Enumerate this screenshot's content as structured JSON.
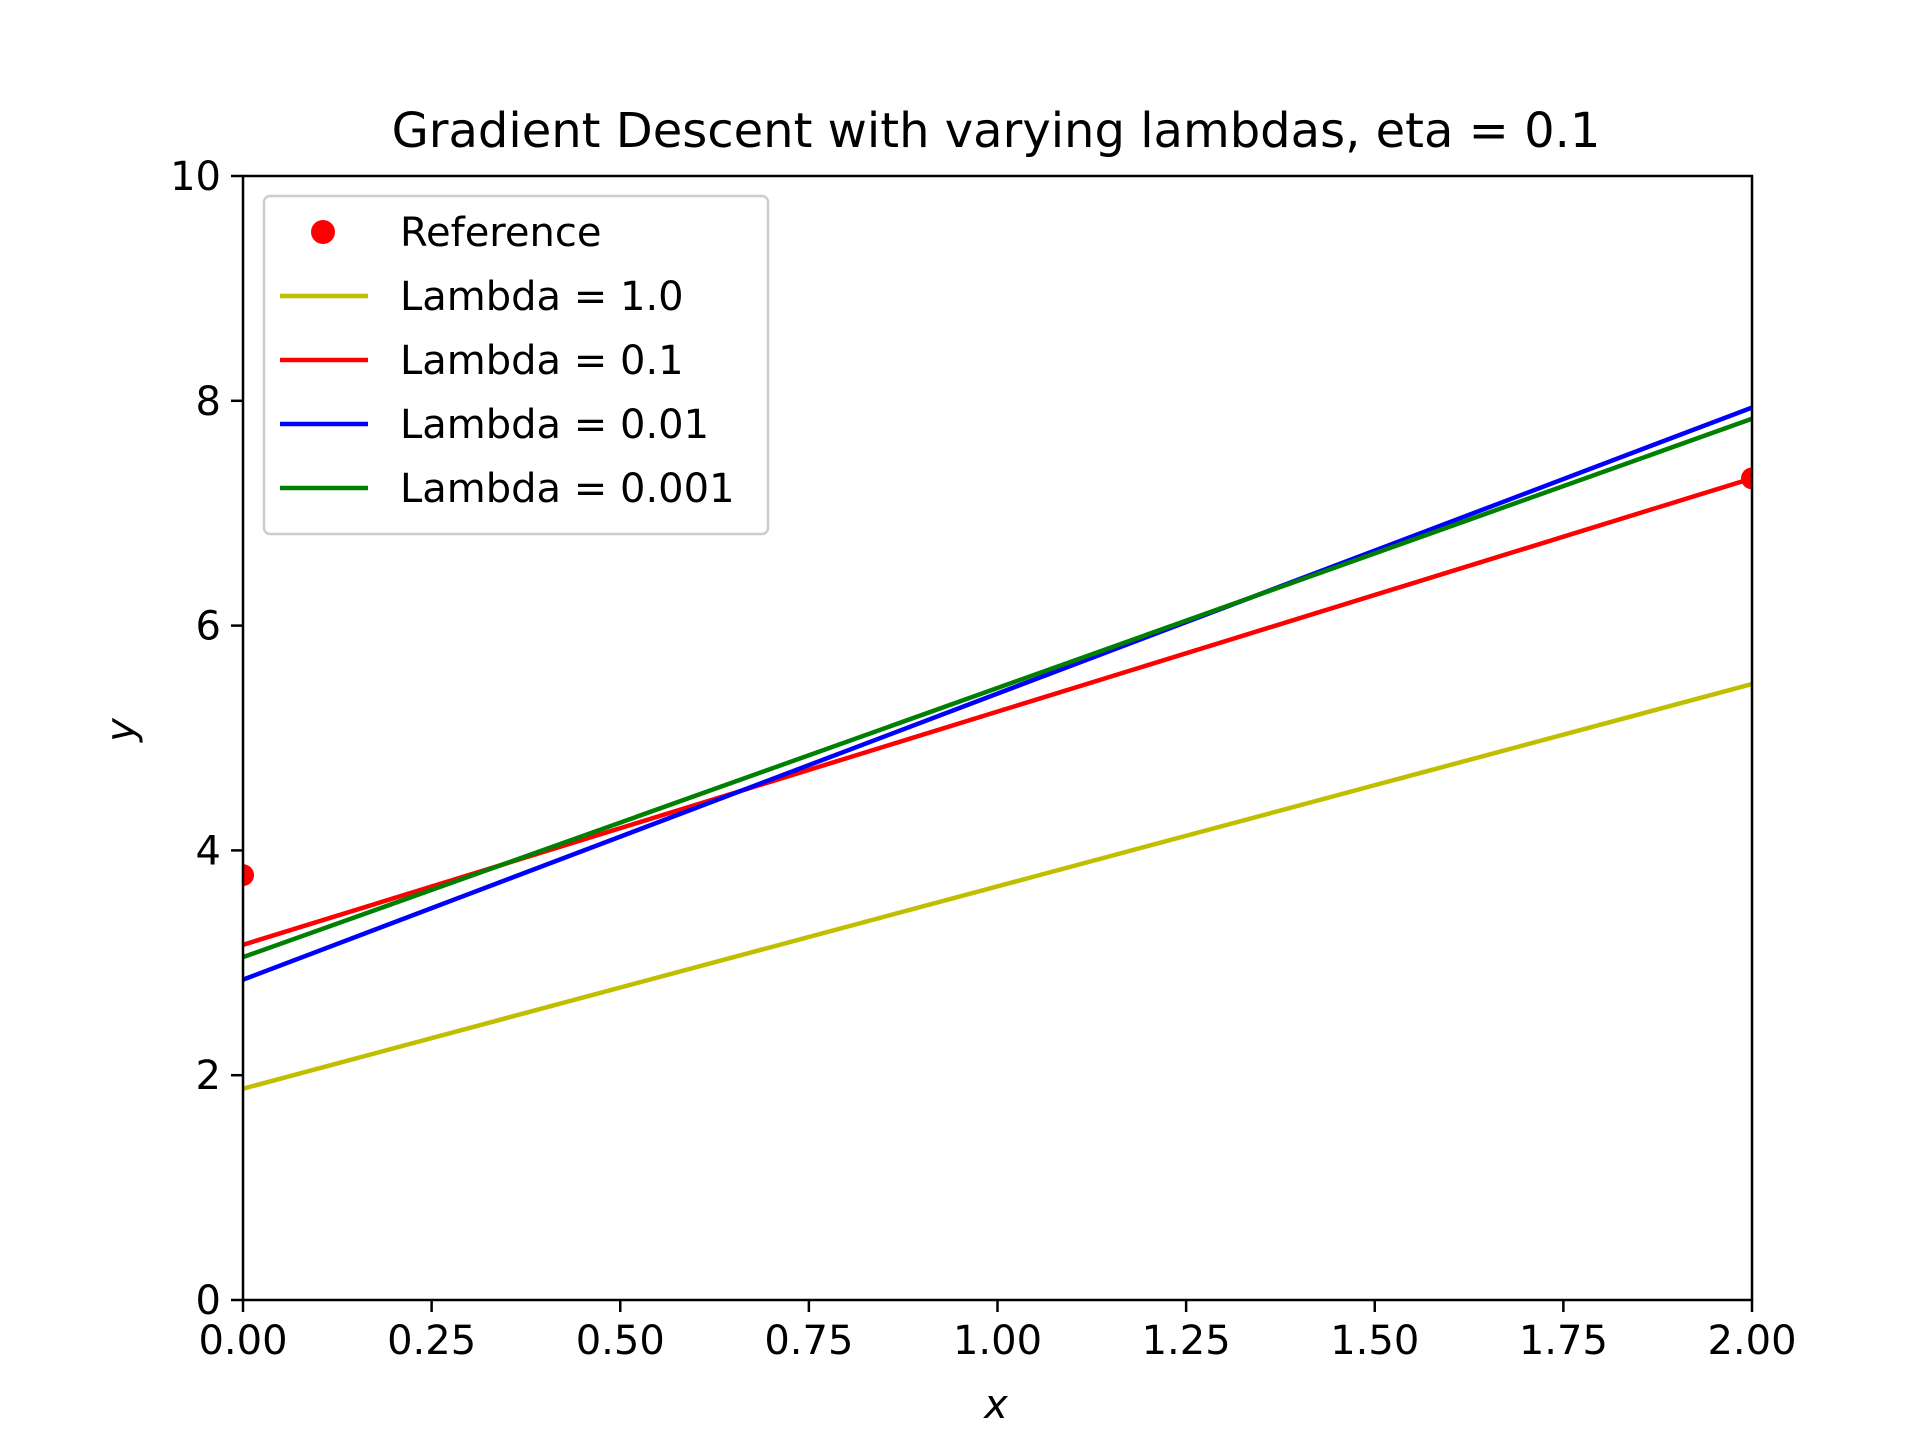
{
  "chart_data": {
    "type": "line",
    "title": "Gradient Descent with varying lambdas, eta = 0.1",
    "xlabel": "x",
    "ylabel": "y",
    "xlim": [
      0,
      2
    ],
    "ylim": [
      0,
      10
    ],
    "xticks": [
      "0.00",
      "0.25",
      "0.50",
      "0.75",
      "1.00",
      "1.25",
      "1.50",
      "1.75",
      "2.00"
    ],
    "xtick_values": [
      0,
      0.25,
      0.5,
      0.75,
      1.0,
      1.25,
      1.5,
      1.75,
      2.0
    ],
    "yticks": [
      "0",
      "2",
      "4",
      "6",
      "8",
      "10"
    ],
    "ytick_values": [
      0,
      2,
      4,
      6,
      8,
      10
    ],
    "grid": false,
    "legend_position": "top-left",
    "reference": {
      "name": "Reference",
      "color": "#ff0000",
      "x": [
        0,
        2
      ],
      "y": [
        3.78,
        7.31
      ]
    },
    "series": [
      {
        "name": "Lambda = 1.0",
        "color": "#bfbf00",
        "x": [
          0,
          2
        ],
        "y": [
          1.88,
          5.48
        ]
      },
      {
        "name": "Lambda = 0.1",
        "color": "#ff0000",
        "x": [
          0,
          2
        ],
        "y": [
          3.16,
          7.31
        ]
      },
      {
        "name": "Lambda = 0.01",
        "color": "#0000ff",
        "x": [
          0,
          2
        ],
        "y": [
          2.85,
          7.94
        ]
      },
      {
        "name": "Lambda = 0.001",
        "color": "#008000",
        "x": [
          0,
          2
        ],
        "y": [
          3.05,
          7.84
        ]
      }
    ]
  }
}
